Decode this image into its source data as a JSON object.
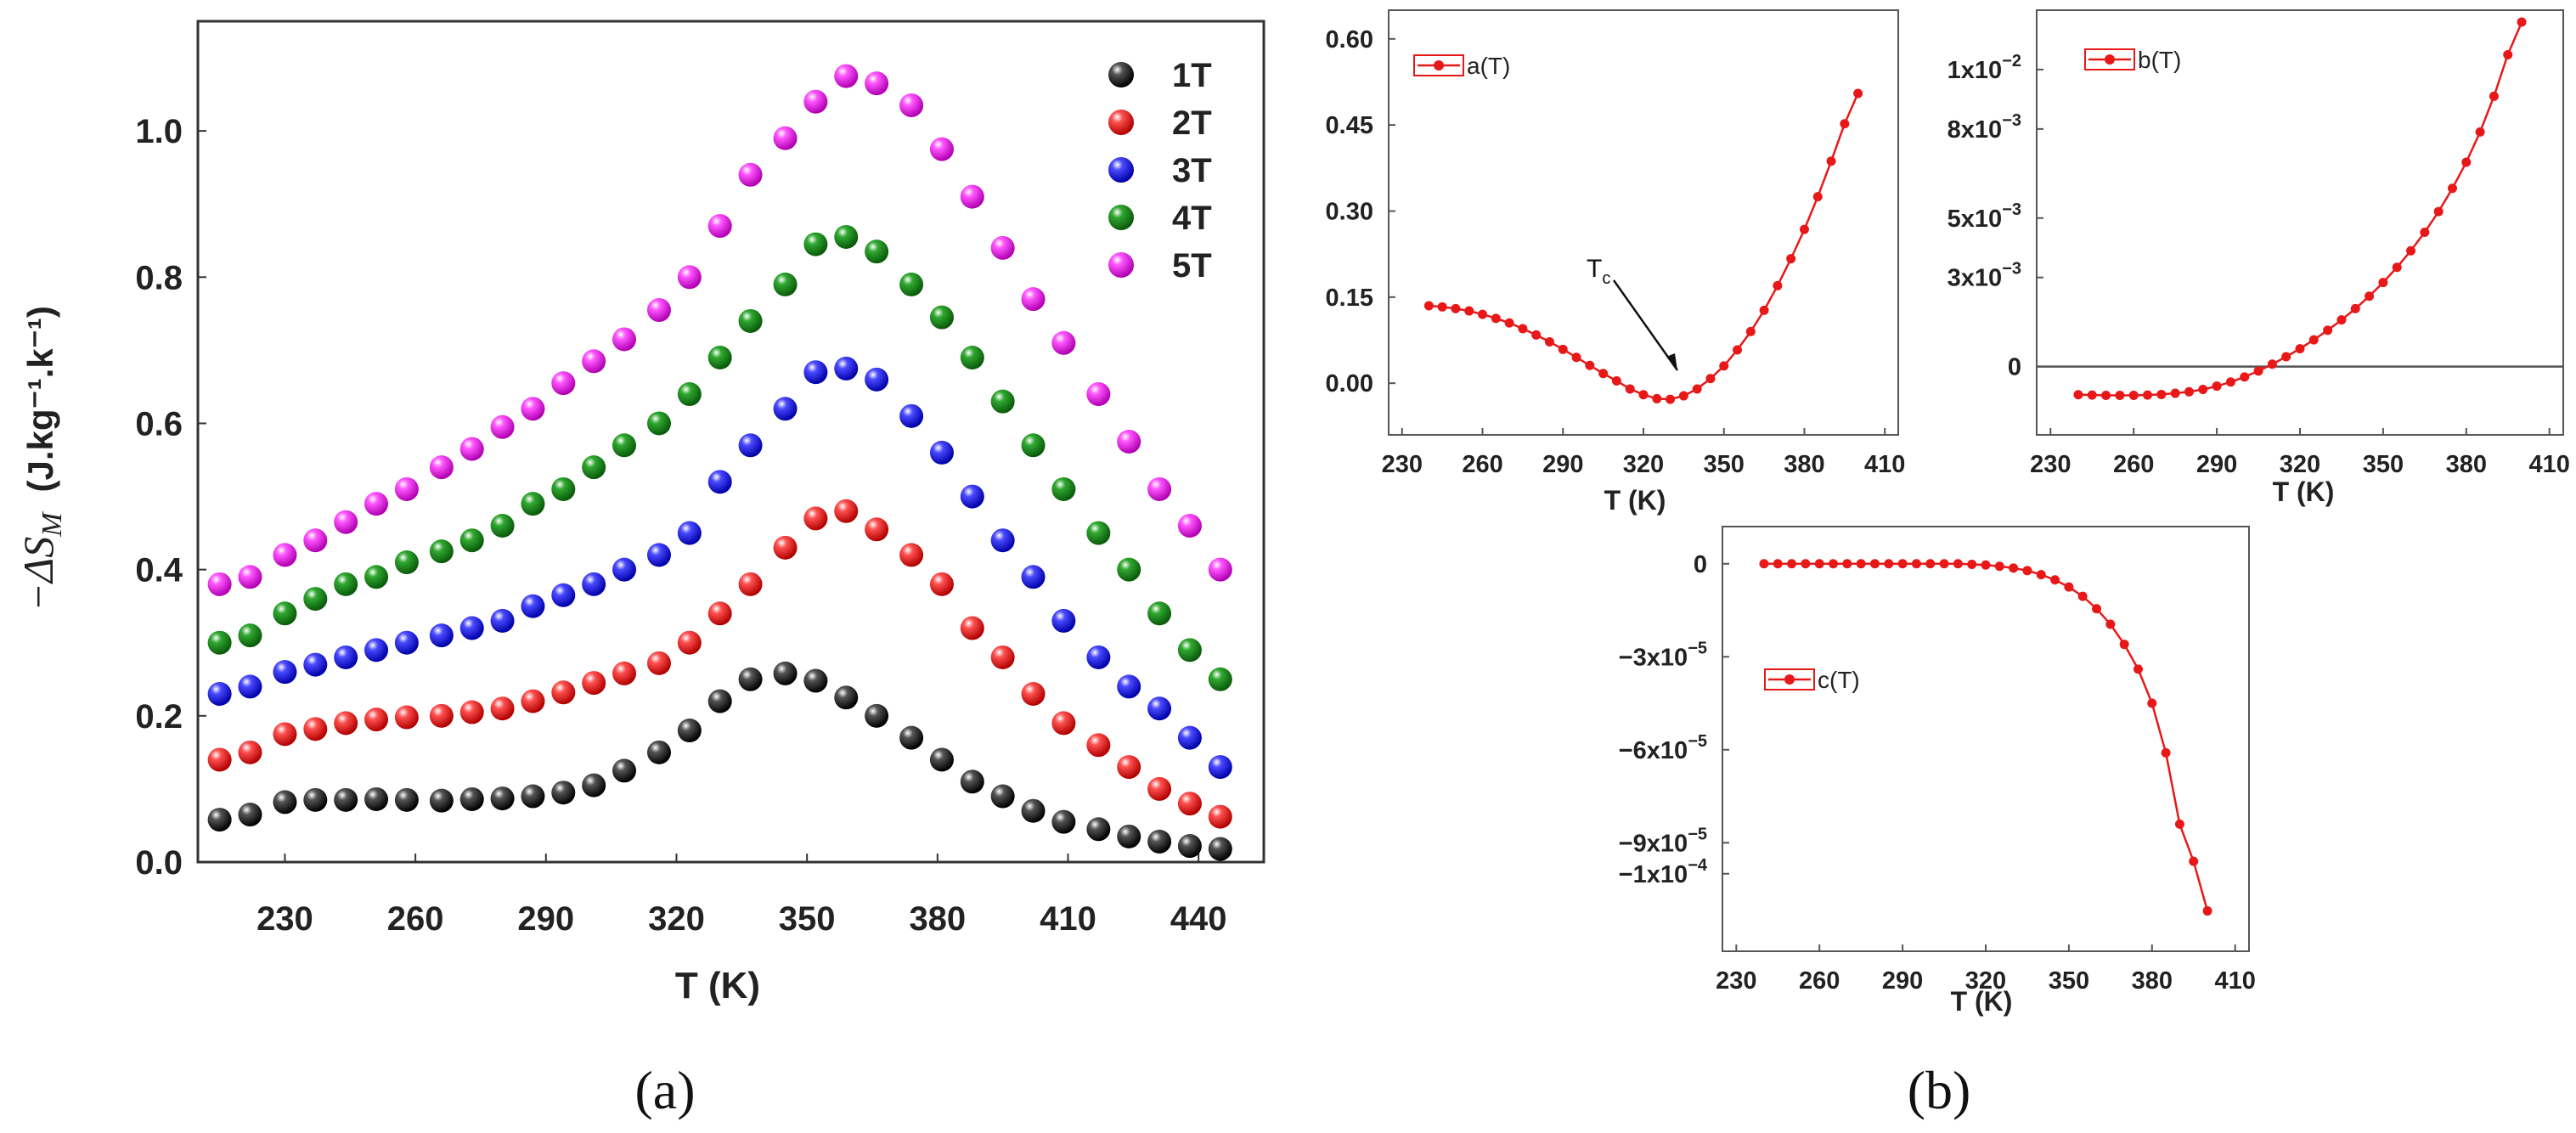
{
  "panels": {
    "a": "(a)",
    "b": "(b)"
  },
  "colors": {
    "series_1T": "#111111",
    "series_2T": "#ee1111",
    "series_3T": "#1515ee",
    "series_4T": "#128a12",
    "series_5T": "#ee22ee",
    "fit_red": "#e81818"
  },
  "chart_data": [
    {
      "id": "a",
      "type": "scatter",
      "title": "",
      "xlabel": "T (K)",
      "ylabel": "−ΔS_M (J.kg⁻¹.k⁻¹)",
      "ylabel_main": "−ΔS",
      "ylabel_sub": "M",
      "ylabel_units": "(J.kg⁻¹.k⁻¹)",
      "xlim": [
        210,
        455
      ],
      "ylim": [
        0,
        1.15
      ],
      "xticks": [
        230,
        260,
        290,
        320,
        350,
        380,
        410,
        440
      ],
      "xtick_labels": [
        "230",
        "260",
        "290",
        "320",
        "350",
        "380",
        "410",
        "440"
      ],
      "yticks": [
        0,
        0.2,
        0.4,
        0.6,
        0.8,
        1.0
      ],
      "ytick_labels": [
        "0.0",
        "0.2",
        "0.4",
        "0.6",
        "0.8",
        "1.0"
      ],
      "legend_position": "top-right",
      "x": [
        215,
        222,
        230,
        237,
        244,
        251,
        258,
        266,
        273,
        280,
        287,
        294,
        301,
        308,
        316,
        323,
        330,
        337,
        345,
        352,
        359,
        366,
        374,
        381,
        388,
        395,
        402,
        409,
        417,
        424,
        431,
        438,
        445
      ],
      "series": [
        {
          "name": "1T",
          "values": [
            0.058,
            0.065,
            0.082,
            0.085,
            0.085,
            0.086,
            0.085,
            0.084,
            0.086,
            0.087,
            0.09,
            0.095,
            0.105,
            0.125,
            0.15,
            0.18,
            0.22,
            0.25,
            0.258,
            0.248,
            0.225,
            0.2,
            0.17,
            0.14,
            0.11,
            0.09,
            0.07,
            0.055,
            0.045,
            0.035,
            0.028,
            0.022,
            0.018
          ]
        },
        {
          "name": "2T",
          "values": [
            0.14,
            0.15,
            0.175,
            0.182,
            0.19,
            0.195,
            0.198,
            0.2,
            0.205,
            0.21,
            0.22,
            0.232,
            0.245,
            0.258,
            0.272,
            0.3,
            0.34,
            0.38,
            0.43,
            0.47,
            0.48,
            0.455,
            0.42,
            0.38,
            0.32,
            0.28,
            0.23,
            0.19,
            0.16,
            0.13,
            0.1,
            0.08,
            0.062
          ]
        },
        {
          "name": "3T",
          "values": [
            0.23,
            0.24,
            0.26,
            0.27,
            0.28,
            0.29,
            0.3,
            0.31,
            0.32,
            0.33,
            0.35,
            0.365,
            0.38,
            0.4,
            0.42,
            0.45,
            0.52,
            0.57,
            0.62,
            0.67,
            0.675,
            0.66,
            0.61,
            0.56,
            0.5,
            0.44,
            0.39,
            0.33,
            0.28,
            0.24,
            0.21,
            0.17,
            0.13
          ]
        },
        {
          "name": "4T",
          "values": [
            0.3,
            0.31,
            0.34,
            0.36,
            0.38,
            0.39,
            0.41,
            0.425,
            0.44,
            0.46,
            0.49,
            0.51,
            0.54,
            0.57,
            0.6,
            0.64,
            0.69,
            0.74,
            0.79,
            0.845,
            0.855,
            0.835,
            0.79,
            0.745,
            0.69,
            0.63,
            0.57,
            0.51,
            0.45,
            0.4,
            0.34,
            0.29,
            0.25
          ]
        },
        {
          "name": "5T",
          "values": [
            0.38,
            0.39,
            0.42,
            0.44,
            0.465,
            0.49,
            0.51,
            0.54,
            0.565,
            0.595,
            0.62,
            0.655,
            0.685,
            0.715,
            0.755,
            0.8,
            0.87,
            0.94,
            0.99,
            1.04,
            1.075,
            1.065,
            1.035,
            0.975,
            0.91,
            0.84,
            0.77,
            0.71,
            0.64,
            0.575,
            0.51,
            0.46,
            0.4
          ]
        }
      ]
    },
    {
      "id": "b1",
      "type": "line",
      "legend": "a(T)",
      "xlabel": "T (K)",
      "ylabel": "",
      "xlim": [
        225,
        415
      ],
      "ylim": [
        -0.09,
        0.65
      ],
      "xticks": [
        230,
        260,
        290,
        320,
        350,
        380,
        410
      ],
      "xtick_labels": [
        "230",
        "260",
        "290",
        "320",
        "350",
        "380",
        "410"
      ],
      "yticks": [
        0,
        0.15,
        0.3,
        0.45,
        0.6
      ],
      "ytick_labels": [
        "0.00",
        "0.15",
        "0.30",
        "0.45",
        "0.60"
      ],
      "annotation": {
        "text": "T",
        "sub": "c",
        "x": 328,
        "y": -0.03
      },
      "legend_position": "top-left",
      "x": [
        240,
        245,
        250,
        255,
        260,
        265,
        270,
        275,
        280,
        285,
        290,
        295,
        300,
        305,
        310,
        315,
        320,
        325,
        330,
        335,
        340,
        345,
        350,
        355,
        360,
        365,
        370,
        375,
        380,
        385,
        390,
        395,
        400
      ],
      "values": [
        0.135,
        0.133,
        0.13,
        0.126,
        0.12,
        0.113,
        0.105,
        0.095,
        0.084,
        0.072,
        0.059,
        0.045,
        0.031,
        0.017,
        0.004,
        -0.01,
        -0.02,
        -0.027,
        -0.028,
        -0.022,
        -0.01,
        0.008,
        0.03,
        0.058,
        0.09,
        0.127,
        0.17,
        0.217,
        0.268,
        0.325,
        0.387,
        0.452,
        0.505
      ]
    },
    {
      "id": "b2",
      "type": "line",
      "legend": "b(T)",
      "xlabel": "T (K)",
      "ylabel": "",
      "xlim": [
        225,
        415
      ],
      "ylim": [
        -0.0023,
        0.012
      ],
      "xticks": [
        230,
        260,
        290,
        320,
        350,
        380,
        410
      ],
      "xtick_labels": [
        "230",
        "260",
        "290",
        "320",
        "350",
        "380",
        "410"
      ],
      "yticks": [
        0,
        0.003,
        0.005,
        0.008,
        0.01
      ],
      "ytick_base": [
        "0",
        "3x10",
        "5x10",
        "8x10",
        "1x10"
      ],
      "ytick_exp": [
        "",
        "−3",
        "−3",
        "−3",
        "−2"
      ],
      "hline": 0,
      "legend_position": "top-left",
      "x": [
        240,
        245,
        250,
        255,
        260,
        265,
        270,
        275,
        280,
        285,
        290,
        295,
        300,
        305,
        310,
        315,
        320,
        325,
        330,
        335,
        340,
        345,
        350,
        355,
        360,
        365,
        370,
        375,
        380,
        385,
        390,
        395,
        400
      ],
      "values": [
        -0.00095,
        -0.00096,
        -0.00097,
        -0.00097,
        -0.00097,
        -0.00096,
        -0.00094,
        -0.0009,
        -0.00085,
        -0.00077,
        -0.00066,
        -0.00052,
        -0.00035,
        -0.00015,
        8e-05,
        0.00033,
        0.0006,
        0.0009,
        0.00122,
        0.00157,
        0.00195,
        0.00237,
        0.00283,
        0.00334,
        0.0039,
        0.00452,
        0.00522,
        0.006,
        0.00688,
        0.0079,
        0.0091,
        0.0105,
        0.0116
      ]
    },
    {
      "id": "b3",
      "type": "line",
      "legend": "c(T)",
      "xlabel": "T (K)",
      "ylabel": "",
      "xlim": [
        225,
        415
      ],
      "ylim": [
        -0.000125,
        1.2e-05
      ],
      "xticks": [
        230,
        260,
        290,
        320,
        350,
        380,
        410
      ],
      "xtick_labels": [
        "230",
        "260",
        "290",
        "320",
        "350",
        "380",
        "410"
      ],
      "yticks": [
        0,
        -3e-05,
        -6e-05,
        -9e-05,
        -0.0001
      ],
      "ytick_base": [
        "0",
        "−3x10",
        "−6x10",
        "−9x10",
        "−1x10"
      ],
      "ytick_exp": [
        "",
        "−5",
        "−5",
        "−5",
        "−4"
      ],
      "legend_position": "center-left",
      "x": [
        240,
        245,
        250,
        255,
        260,
        265,
        270,
        275,
        280,
        285,
        290,
        295,
        300,
        305,
        310,
        315,
        320,
        325,
        330,
        335,
        340,
        345,
        350,
        355,
        360,
        365,
        370,
        375,
        380,
        385,
        390,
        395,
        400
      ],
      "values": [
        0.0,
        0.0,
        0.0,
        0.0,
        0.0,
        0.0,
        0.0,
        0.0,
        0.0,
        0.0,
        0.0,
        0.0,
        0.0,
        0.0,
        0.0,
        -2e-07,
        -4e-07,
        -8e-07,
        -1.4e-06,
        -2.2e-06,
        -3.5e-06,
        -5.2e-06,
        -7.5e-06,
        -1.05e-05,
        -1.45e-05,
        -1.95e-05,
        -2.6e-05,
        -3.4e-05,
        -4.5e-05,
        -6.1e-05,
        -8.4e-05,
        -9.6e-05,
        -0.000112
      ]
    }
  ]
}
